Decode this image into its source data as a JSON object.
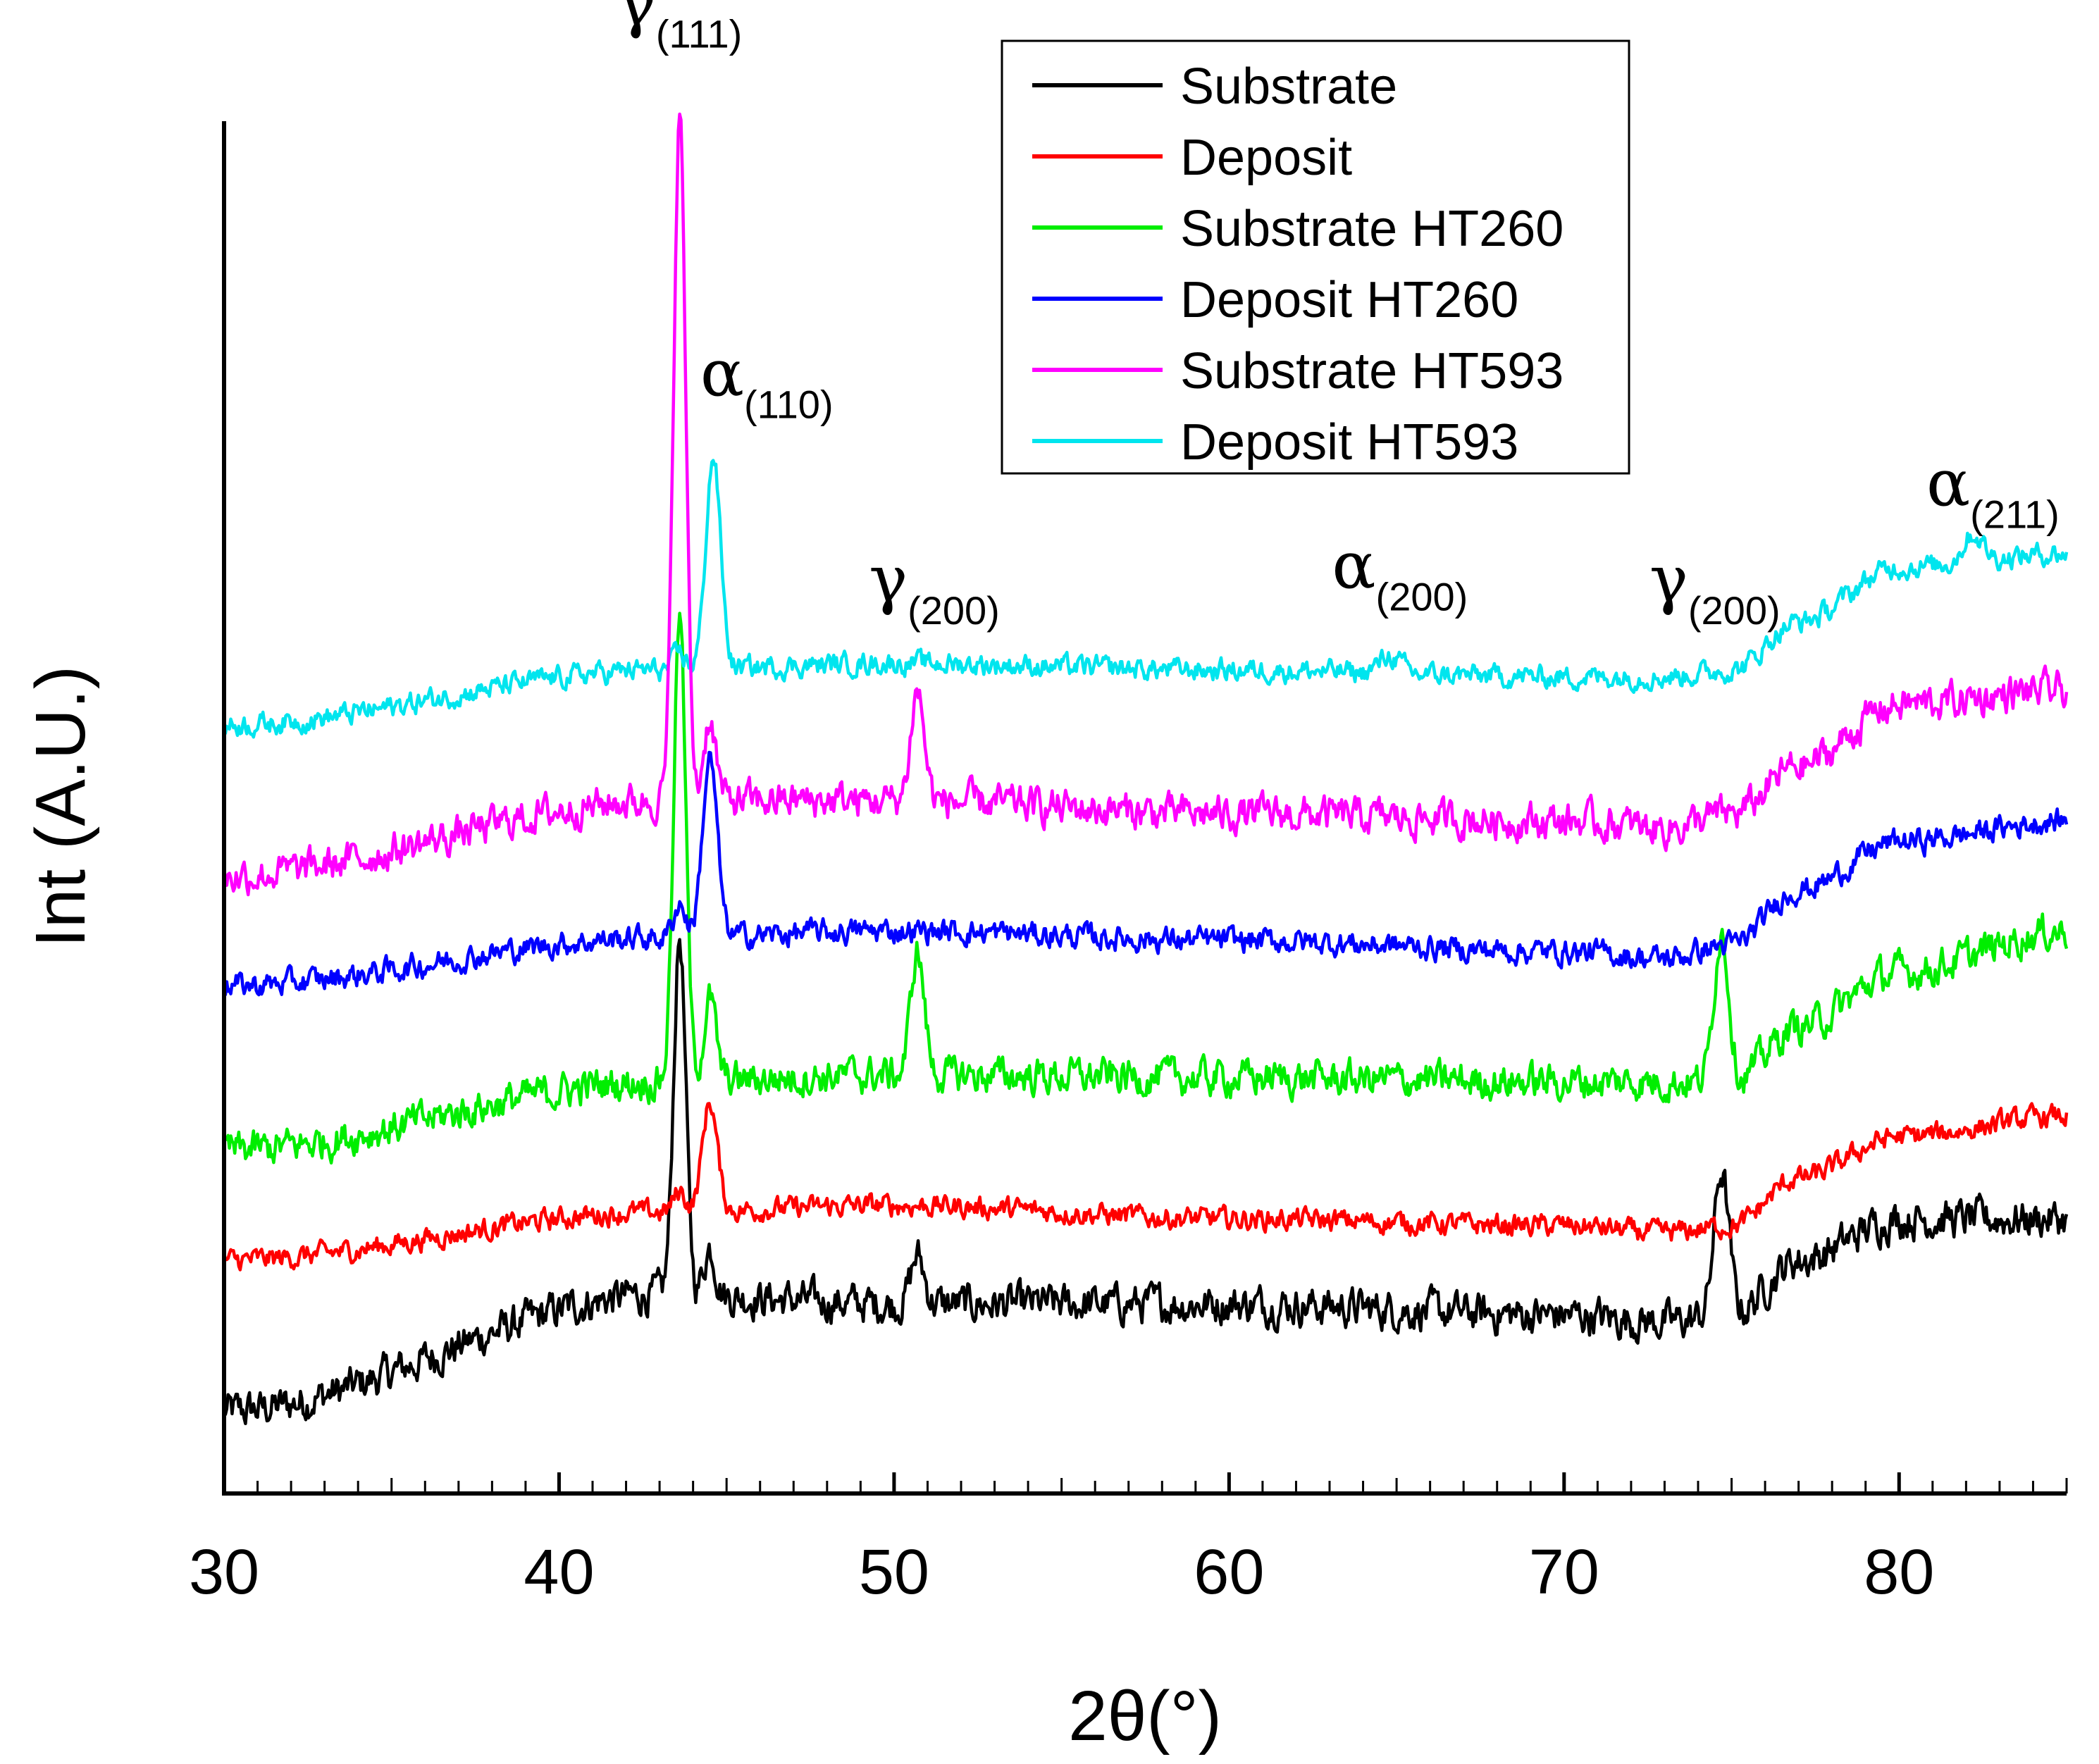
{
  "chart_data": {
    "type": "line",
    "title": "",
    "xlabel": "2θ(°)",
    "ylabel": "Int (A.U.)",
    "xlim": [
      30,
      85
    ],
    "ylim": [
      0,
      100
    ],
    "x_ticks": [
      30,
      40,
      50,
      60,
      70,
      80
    ],
    "y_tick_labels": "none",
    "grid": false,
    "legend_position": "top-right",
    "series": [
      {
        "name": "Substrate",
        "color": "#000000",
        "baseline": [
          [
            30,
            6
          ],
          [
            43,
            14.5
          ],
          [
            50,
            13.8
          ],
          [
            60,
            13.8
          ],
          [
            70,
            13
          ],
          [
            73,
            12.5
          ],
          [
            75,
            13
          ],
          [
            77,
            17
          ],
          [
            80,
            20
          ],
          [
            85,
            20
          ]
        ],
        "peaks": [
          [
            43.6,
            26,
            0.18
          ],
          [
            44.5,
            3.5,
            0.18
          ],
          [
            50.7,
            3.5,
            0.2
          ],
          [
            74.7,
            10.5,
            0.22
          ]
        ],
        "noise": 1.4
      },
      {
        "name": "Deposit",
        "color": "#ff0000",
        "baseline": [
          [
            30,
            17
          ],
          [
            43,
            20.5
          ],
          [
            50,
            21
          ],
          [
            60,
            20
          ],
          [
            70,
            19.5
          ],
          [
            73,
            19
          ],
          [
            75,
            19.5
          ],
          [
            77,
            23
          ],
          [
            80,
            26
          ],
          [
            85,
            27.5
          ]
        ],
        "peaks": [
          [
            43.6,
            1.5,
            0.18
          ],
          [
            44.5,
            8,
            0.22
          ]
        ],
        "noise": 0.8
      },
      {
        "name": "Substrate HT260",
        "color": "#00ee00",
        "baseline": [
          [
            30,
            25
          ],
          [
            43,
            30
          ],
          [
            50,
            30.5
          ],
          [
            60,
            30.3
          ],
          [
            70,
            30
          ],
          [
            73,
            30
          ],
          [
            75,
            30
          ],
          [
            77,
            34
          ],
          [
            80,
            38
          ],
          [
            85,
            41
          ]
        ],
        "peaks": [
          [
            43.6,
            34,
            0.18
          ],
          [
            44.5,
            6,
            0.18
          ],
          [
            50.7,
            9,
            0.2
          ],
          [
            74.7,
            11,
            0.22
          ]
        ],
        "noise": 1.3
      },
      {
        "name": "Deposit HT260",
        "color": "#0000ff",
        "baseline": [
          [
            30,
            37
          ],
          [
            43,
            40.5
          ],
          [
            50,
            41
          ],
          [
            60,
            40.3
          ],
          [
            70,
            39.5
          ],
          [
            73,
            39
          ],
          [
            75,
            40
          ],
          [
            77,
            44
          ],
          [
            80,
            47.5
          ],
          [
            85,
            49
          ]
        ],
        "peaks": [
          [
            43.6,
            2.5,
            0.18
          ],
          [
            44.5,
            13,
            0.22
          ]
        ],
        "noise": 0.9
      },
      {
        "name": "Substrate HT593",
        "color": "#ff00ff",
        "baseline": [
          [
            30,
            45
          ],
          [
            43,
            50.5
          ],
          [
            50,
            50.5
          ],
          [
            60,
            49.5
          ],
          [
            70,
            49
          ],
          [
            73,
            48.5
          ],
          [
            75,
            49.5
          ],
          [
            77,
            53
          ],
          [
            80,
            57.5
          ],
          [
            85,
            58.5
          ]
        ],
        "peaks": [
          [
            43.6,
            50,
            0.18
          ],
          [
            44.5,
            6,
            0.18
          ],
          [
            50.7,
            8,
            0.2
          ]
        ],
        "noise": 1.3
      },
      {
        "name": "Deposit HT593",
        "color": "#00e5ee",
        "baseline": [
          [
            30,
            56
          ],
          [
            43,
            60
          ],
          [
            50,
            60.5
          ],
          [
            60,
            60
          ],
          [
            70,
            59.5
          ],
          [
            73,
            59.5
          ],
          [
            75,
            60
          ],
          [
            77,
            63.5
          ],
          [
            80,
            67.5
          ],
          [
            85,
            68.5
          ]
        ],
        "peaks": [
          [
            43.6,
            1.2,
            0.18
          ],
          [
            44.6,
            15.5,
            0.22
          ],
          [
            64.8,
            1.3,
            0.3
          ],
          [
            82.2,
            2,
            0.3
          ]
        ],
        "noise": 0.8
      }
    ],
    "annotations": [
      {
        "symbol": "γ",
        "subscript": "(111)",
        "x": 43.6,
        "y": 107
      },
      {
        "symbol": "α",
        "subscript": "(110)",
        "x": 46.2,
        "y": 80
      },
      {
        "symbol": "γ",
        "subscript": "(200)",
        "x": 51.2,
        "y": 65
      },
      {
        "symbol": "α",
        "subscript": "(200)",
        "x": 65.1,
        "y": 66
      },
      {
        "symbol": "γ",
        "subscript": "(200)",
        "x": 74.5,
        "y": 65
      },
      {
        "symbol": "α",
        "subscript": "(211)",
        "x": 82.8,
        "y": 72
      }
    ]
  }
}
